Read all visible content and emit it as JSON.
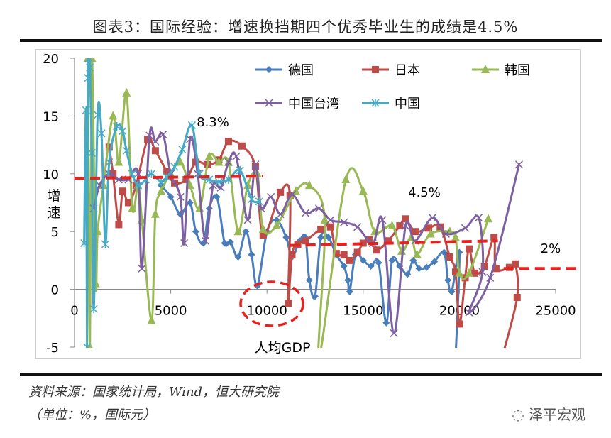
{
  "title": "图表3：国际经验：增速换挡期四个优秀毕业生的成绩是4.5%",
  "source": "资料来源：国家统计局，Wind，恒大研究院",
  "unit": "（单位：%，国际元）",
  "logo": "泽平宏观",
  "chart_data": {
    "type": "line",
    "xlabel": "人均GDP",
    "ylabel": "增速",
    "xlim": [
      0,
      25000
    ],
    "ylim": [
      -5,
      20
    ],
    "xticks": [
      "0",
      "5000",
      "10000",
      "15000",
      "20000",
      "25000"
    ],
    "yticks": [
      "-5",
      "0",
      "5",
      "10",
      "15",
      "20"
    ],
    "grid": false,
    "legend_position": "top",
    "annotations": [
      "8.3%",
      "4.5%",
      "2%"
    ],
    "series": [
      {
        "name": "德国",
        "color": "#4a7ebb",
        "marker": "diamond",
        "points": [
          [
            4500,
            9
          ],
          [
            5000,
            8
          ],
          [
            5500,
            6.5
          ],
          [
            6000,
            7.5
          ],
          [
            6300,
            5
          ],
          [
            6700,
            4
          ],
          [
            7000,
            7
          ],
          [
            7400,
            8
          ],
          [
            7800,
            4
          ],
          [
            8100,
            4.1
          ],
          [
            8500,
            2.8
          ],
          [
            8900,
            5
          ],
          [
            9200,
            3
          ],
          [
            9500,
            0.3
          ],
          [
            10000,
            5
          ],
          [
            10500,
            6
          ],
          [
            11000,
            4.5
          ],
          [
            11300,
            2.8
          ],
          [
            11700,
            4.2
          ],
          [
            12000,
            4.5
          ],
          [
            12200,
            0.8
          ],
          [
            12500,
            -0.6
          ],
          [
            12800,
            4.5
          ],
          [
            13200,
            4.5
          ],
          [
            13600,
            3
          ],
          [
            14000,
            2
          ],
          [
            14200,
            0.8
          ],
          [
            14300,
            -0.2
          ],
          [
            14600,
            3
          ],
          [
            15000,
            2.5
          ],
          [
            15400,
            2
          ],
          [
            15800,
            2.3
          ],
          [
            16200,
            -2.9
          ],
          [
            16500,
            2.5
          ],
          [
            16900,
            2
          ],
          [
            17300,
            1.3
          ],
          [
            17600,
            2.5
          ],
          [
            17900,
            1.8
          ],
          [
            18300,
            1.9
          ],
          [
            18700,
            2.4
          ],
          [
            19200,
            3.2
          ],
          [
            19400,
            0.8
          ],
          [
            19600,
            -0.2
          ],
          [
            20000,
            3.2
          ],
          [
            19800,
            -6
          ]
        ]
      },
      {
        "name": "日本",
        "color": "#be4b48",
        "marker": "square",
        "points": [
          [
            1800,
            12.3
          ],
          [
            2000,
            10
          ],
          [
            2300,
            5.6
          ],
          [
            2500,
            8.5
          ],
          [
            2800,
            7.5
          ],
          [
            3200,
            9
          ],
          [
            3800,
            13
          ],
          [
            4200,
            12
          ],
          [
            4800,
            10.2
          ],
          [
            5200,
            9.2
          ],
          [
            5800,
            9.5
          ],
          [
            6300,
            11
          ],
          [
            6900,
            10.8
          ],
          [
            7500,
            11.2
          ],
          [
            8000,
            12.8
          ],
          [
            8700,
            12.4
          ],
          [
            9400,
            10.6
          ],
          [
            9800,
            4.7
          ],
          [
            10700,
            8.4
          ],
          [
            11200,
            8.1
          ],
          [
            11100,
            -1.2
          ],
          [
            11300,
            3
          ],
          [
            11600,
            3.9
          ],
          [
            12000,
            4.2
          ],
          [
            12800,
            5.2
          ],
          [
            13300,
            5.4
          ],
          [
            13600,
            3.1
          ],
          [
            14000,
            3
          ],
          [
            14300,
            2.5
          ],
          [
            14700,
            3.2
          ],
          [
            15000,
            4
          ],
          [
            15300,
            4.3
          ],
          [
            15700,
            3.4
          ],
          [
            16300,
            4.2
          ],
          [
            16900,
            5.5
          ],
          [
            17200,
            6.1
          ],
          [
            17700,
            5
          ],
          [
            18400,
            5.3
          ],
          [
            19000,
            5.4
          ],
          [
            19500,
            2.8
          ],
          [
            19800,
            1.5
          ],
          [
            20000,
            -3
          ],
          [
            20300,
            1
          ],
          [
            20500,
            3.5
          ],
          [
            20800,
            1.4
          ],
          [
            21300,
            2
          ],
          [
            21800,
            4.5
          ],
          [
            21900,
            1.8
          ],
          [
            22600,
            1.9
          ],
          [
            22900,
            2.2
          ],
          [
            23000,
            -0.7
          ],
          [
            22200,
            -6
          ]
        ]
      },
      {
        "name": "韩国",
        "color": "#98b954",
        "marker": "triangle",
        "points": [
          [
            700,
            20
          ],
          [
            800,
            -5
          ],
          [
            900,
            20
          ],
          [
            1100,
            0.5
          ],
          [
            1200,
            5
          ],
          [
            1500,
            9
          ],
          [
            2000,
            15
          ],
          [
            2300,
            11
          ],
          [
            2700,
            17
          ],
          [
            3000,
            7
          ],
          [
            3300,
            9
          ],
          [
            3500,
            6
          ],
          [
            4000,
            -2.7
          ],
          [
            4200,
            6.5
          ],
          [
            4500,
            8.5
          ],
          [
            5000,
            10
          ],
          [
            5500,
            11
          ],
          [
            6000,
            9
          ],
          [
            6500,
            7
          ],
          [
            7000,
            11.5
          ],
          [
            7500,
            11
          ],
          [
            8000,
            11
          ],
          [
            8500,
            5
          ],
          [
            9000,
            9
          ],
          [
            9500,
            10
          ],
          [
            9800,
            5.2
          ],
          [
            10500,
            5.5
          ],
          [
            11500,
            8.5
          ],
          [
            12200,
            9
          ],
          [
            13000,
            6
          ],
          [
            12700,
            -6
          ],
          [
            14100,
            9.5
          ],
          [
            15000,
            8.5
          ],
          [
            15600,
            5
          ],
          [
            16500,
            5.5
          ],
          [
            17000,
            3.3
          ],
          [
            17500,
            4.5
          ],
          [
            17800,
            3
          ],
          [
            18500,
            4.8
          ],
          [
            19500,
            5
          ],
          [
            19800,
            4.5
          ],
          [
            20000,
            1.4
          ],
          [
            20500,
            1.4
          ],
          [
            21500,
            6.1
          ]
        ]
      },
      {
        "name": "中国台湾",
        "color": "#7d60a0",
        "marker": "x",
        "points": [
          [
            1000,
            7
          ],
          [
            1300,
            9
          ],
          [
            1800,
            10
          ],
          [
            2300,
            9.5
          ],
          [
            2800,
            9.5
          ],
          [
            3300,
            10
          ],
          [
            3500,
            1.8
          ],
          [
            3900,
            13.3
          ],
          [
            4200,
            12.8
          ],
          [
            4600,
            13.4
          ],
          [
            5000,
            10
          ],
          [
            5500,
            8
          ],
          [
            5700,
            4
          ],
          [
            6000,
            13
          ],
          [
            6400,
            10
          ],
          [
            6800,
            4.2
          ],
          [
            7200,
            9
          ],
          [
            7600,
            8.8
          ],
          [
            8000,
            11
          ],
          [
            8400,
            11.5
          ],
          [
            9000,
            6
          ],
          [
            9400,
            10.8
          ],
          [
            9700,
            7
          ],
          [
            10200,
            8
          ],
          [
            10700,
            6.5
          ],
          [
            11300,
            8.2
          ],
          [
            12000,
            6.6
          ],
          [
            12700,
            7
          ],
          [
            13300,
            6
          ],
          [
            14000,
            5.8
          ],
          [
            14700,
            5.4
          ],
          [
            15500,
            4
          ],
          [
            16000,
            6
          ],
          [
            16600,
            -3.8
          ],
          [
            17200,
            5.5
          ],
          [
            17700,
            4.2
          ],
          [
            18600,
            6.2
          ],
          [
            19300,
            4.8
          ],
          [
            20300,
            5.3
          ],
          [
            21000,
            6.2
          ],
          [
            21200,
            1.5
          ],
          [
            20500,
            -2
          ],
          [
            21600,
            1
          ],
          [
            23100,
            10.8
          ]
        ]
      },
      {
        "name": "中国",
        "color": "#46aac5",
        "marker": "star",
        "points": [
          [
            500,
            4
          ],
          [
            600,
            15.5
          ],
          [
            650,
            -5
          ],
          [
            700,
            18.3
          ],
          [
            750,
            20
          ],
          [
            800,
            19.2
          ],
          [
            900,
            11.8
          ],
          [
            1000,
            -1.7
          ],
          [
            1200,
            15.1
          ],
          [
            1400,
            13.5
          ],
          [
            1600,
            3.9
          ],
          [
            1800,
            11
          ],
          [
            2200,
            14.1
          ],
          [
            2500,
            13.7
          ],
          [
            2700,
            12
          ],
          [
            3000,
            10
          ],
          [
            3300,
            9
          ],
          [
            3700,
            9.5
          ],
          [
            4000,
            10
          ],
          [
            4500,
            9.3
          ],
          [
            4800,
            9.7
          ],
          [
            5200,
            10.6
          ],
          [
            5600,
            12.1
          ],
          [
            6100,
            14.2
          ],
          [
            6500,
            10
          ],
          [
            7000,
            9.5
          ],
          [
            7500,
            9.3
          ],
          [
            8000,
            9.5
          ],
          [
            8600,
            10.3
          ],
          [
            9200,
            7.8
          ],
          [
            9600,
            7.6
          ]
        ]
      }
    ],
    "trend_lines": [
      {
        "label": "8.3%",
        "color": "#e8201e",
        "from": [
          0,
          9.6
        ],
        "to": [
          9800,
          9.8
        ]
      },
      {
        "label": "4.5%",
        "color": "#e8201e",
        "from": [
          11200,
          3.8
        ],
        "to": [
          22000,
          4.2
        ]
      },
      {
        "label": "2%",
        "color": "#e8201e",
        "from": [
          22300,
          1.8
        ],
        "to": [
          26300,
          1.8
        ]
      }
    ]
  }
}
